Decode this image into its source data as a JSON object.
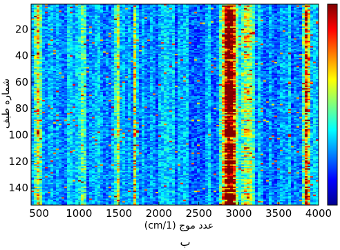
{
  "chart_data": {
    "type": "heatmap",
    "xlabel": "عدد موج (1/cm)",
    "ylabel": "شماره طیف",
    "caption": "ب",
    "xlim": [
      400,
      4000
    ],
    "ylim": [
      153,
      1
    ],
    "x_ticks": [
      500,
      1000,
      1500,
      2000,
      2500,
      3000,
      3500,
      4000
    ],
    "y_ticks": [
      20,
      40,
      60,
      80,
      100,
      120,
      140
    ],
    "colorbar": true,
    "colormap": "jet",
    "grid": false,
    "n_spectra": 153,
    "hot_bands_cm": [
      {
        "center": 2850,
        "width": 60,
        "strength": 1.0
      },
      {
        "center": 2920,
        "width": 50,
        "strength": 0.85
      },
      {
        "center": 3850,
        "width": 45,
        "strength": 0.8
      },
      {
        "center": 3100,
        "width": 70,
        "strength": 0.5
      },
      {
        "center": 1700,
        "width": 25,
        "strength": 0.45
      },
      {
        "center": 1480,
        "width": 25,
        "strength": 0.45
      },
      {
        "center": 1050,
        "width": 30,
        "strength": 0.35
      },
      {
        "center": 480,
        "width": 40,
        "strength": 0.5
      }
    ]
  }
}
